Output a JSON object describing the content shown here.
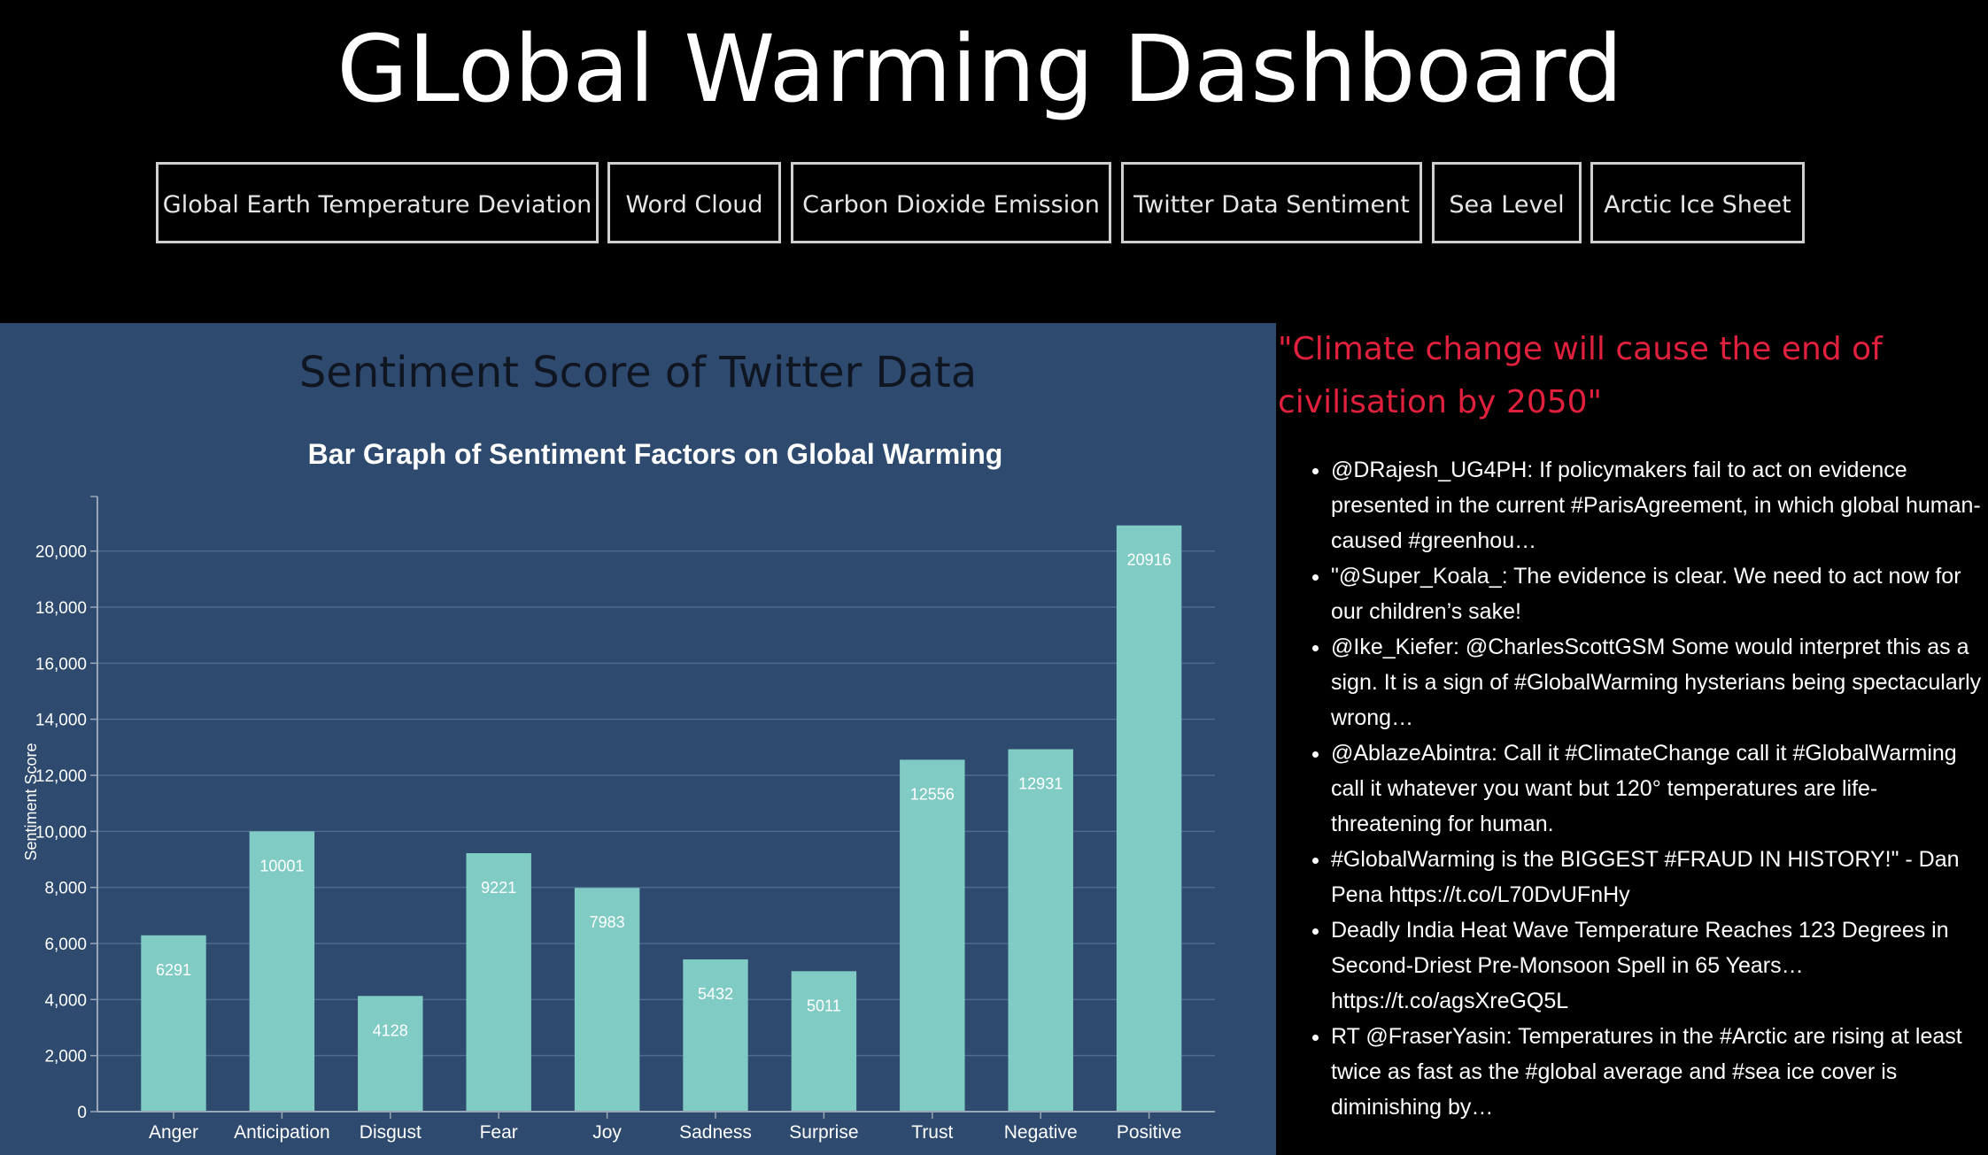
{
  "header": {
    "title": "GLobal Warming Dashboard",
    "nav": [
      {
        "label": "Global Earth Temperature Deviation"
      },
      {
        "label": "Word Cloud"
      },
      {
        "label": "Carbon Dioxide Emission"
      },
      {
        "label": "Twitter Data Sentiment"
      },
      {
        "label": "Sea Level"
      },
      {
        "label": "Arctic Ice Sheet"
      }
    ]
  },
  "section": {
    "title": "Sentiment Score of Twitter Data"
  },
  "chart_data": {
    "type": "bar",
    "title": "Bar Graph of Sentiment Factors on Global Warming",
    "xlabel": "",
    "ylabel": "Sentiment Score",
    "ylim": [
      0,
      21000
    ],
    "yticks": [
      0,
      2000,
      4000,
      6000,
      8000,
      10000,
      12000,
      14000,
      16000,
      18000,
      20000
    ],
    "ytick_labels": [
      "0",
      "2,000",
      "4,000",
      "6,000",
      "8,000",
      "10,000",
      "12,000",
      "14,000",
      "16,000",
      "18,000",
      "20,000"
    ],
    "grid": true,
    "categories": [
      "Anger",
      "Anticipation",
      "Disgust",
      "Fear",
      "Joy",
      "Sadness",
      "Surprise",
      "Trust",
      "Negative",
      "Positive"
    ],
    "values": [
      6291,
      10001,
      4128,
      9221,
      7983,
      5432,
      5011,
      12556,
      12931,
      20916
    ],
    "data_labels": true
  },
  "sidebar": {
    "quote": "\"Climate change will cause the end of civilisation by 2050\"",
    "tweets": [
      "@DRajesh_UG4PH: If policymakers fail to act on evidence presented in the current #ParisAgreement, in which global human-caused #greenhou…",
      "\"@Super_Koala_: The evidence is clear. We need to act now for our children’s sake!",
      "@Ike_Kiefer: @CharlesScottGSM Some would interpret this as a sign. It is a sign of #GlobalWarming hysterians being spectacularly wrong…",
      "@AblazeAbintra: Call it #ClimateChange call it #GlobalWarming call it whatever you want but 120° temperatures are life-threatening for human.",
      "#GlobalWarming is the BIGGEST #FRAUD IN HISTORY!\" - Dan Pena https://t.co/L70DvUFnHy",
      "Deadly India Heat Wave Temperature Reaches 123 Degrees in Second-Driest Pre-Monsoon Spell in 65 Years… https://t.co/agsXreGQ5L",
      "RT @FraserYasin: Temperatures in the #Arctic are rising at least twice as fast as the #global average and #sea ice cover is diminishing by…"
    ]
  },
  "colors": {
    "bar": "#80cbc4",
    "panel": "#2e4a6e",
    "quote": "#e0203c",
    "gridline": "#4d6a8f"
  }
}
